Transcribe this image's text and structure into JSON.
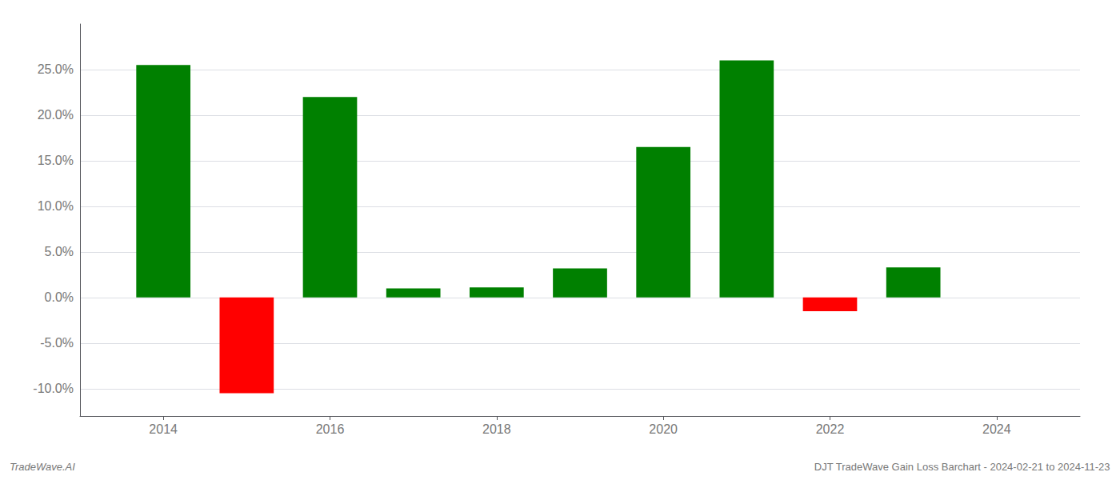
{
  "chart_data": {
    "type": "bar",
    "x": [
      2014,
      2015,
      2016,
      2017,
      2018,
      2019,
      2020,
      2021,
      2022,
      2023
    ],
    "values": [
      0.255,
      -0.105,
      0.22,
      0.01,
      0.011,
      0.032,
      0.165,
      0.26,
      -0.015,
      0.033
    ],
    "colors": [
      "#008000",
      "#ff0000",
      "#008000",
      "#008000",
      "#008000",
      "#008000",
      "#008000",
      "#008000",
      "#ff0000",
      "#008000"
    ],
    "xlim": [
      2013.0,
      2025.0
    ],
    "xticks": [
      2014,
      2016,
      2018,
      2020,
      2022,
      2024
    ],
    "ylim": [
      -0.13,
      0.3
    ],
    "yticks": [
      {
        "value": -0.1,
        "label": "-10.0%"
      },
      {
        "value": -0.05,
        "label": "-5.0%"
      },
      {
        "value": 0.0,
        "label": "0.0%"
      },
      {
        "value": 0.05,
        "label": "5.0%"
      },
      {
        "value": 0.1,
        "label": "10.0%"
      },
      {
        "value": 0.15,
        "label": "15.0%"
      },
      {
        "value": 0.2,
        "label": "20.0%"
      },
      {
        "value": 0.25,
        "label": "25.0%"
      }
    ],
    "grid": true,
    "annotations": [
      "TradeWave.AI",
      "DJT TradeWave Gain Loss Barchart - 2024-02-21 to 2024-11-23"
    ]
  }
}
